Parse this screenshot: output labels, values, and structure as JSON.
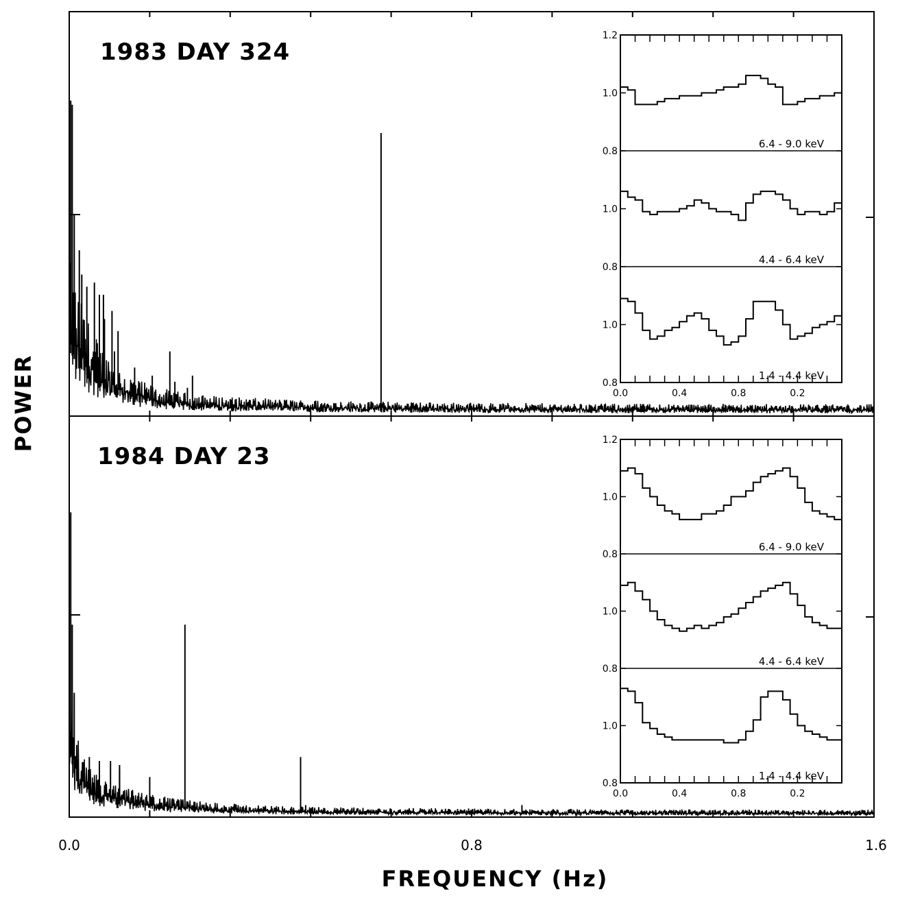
{
  "chart_data": {
    "type": "line",
    "xlabel": "FREQUENCY (Hz)",
    "ylabel": "POWER",
    "xlim": [
      0.0,
      1.6
    ],
    "x_tick_labels": [
      "0.0",
      "0.8",
      "1.6"
    ],
    "x_ticks": [
      0.0,
      0.16,
      0.32,
      0.48,
      0.64,
      0.8,
      0.96,
      1.12,
      1.28,
      1.44,
      1.6
    ],
    "panels": [
      {
        "label": "1983 DAY 324",
        "series": [
          {
            "type": "line",
            "peaks": [
              {
                "x": 0.003,
                "y": 0.78
              },
              {
                "x": 0.006,
                "y": 0.77
              },
              {
                "x": 0.01,
                "y": 0.5
              },
              {
                "x": 0.02,
                "y": 0.41
              },
              {
                "x": 0.025,
                "y": 0.35
              },
              {
                "x": 0.035,
                "y": 0.32
              },
              {
                "x": 0.05,
                "y": 0.33
              },
              {
                "x": 0.06,
                "y": 0.3
              },
              {
                "x": 0.068,
                "y": 0.3
              },
              {
                "x": 0.07,
                "y": 0.24
              },
              {
                "x": 0.085,
                "y": 0.26
              },
              {
                "x": 0.097,
                "y": 0.21
              },
              {
                "x": 0.2,
                "y": 0.16
              },
              {
                "x": 0.09,
                "y": 0.16
              },
              {
                "x": 0.13,
                "y": 0.12
              },
              {
                "x": 0.165,
                "y": 0.1
              },
              {
                "x": 0.21,
                "y": 0.085
              },
              {
                "x": 0.235,
                "y": 0.07
              },
              {
                "x": 0.245,
                "y": 0.1
              },
              {
                "x": 0.62,
                "y": 0.7
              },
              {
                "x": 0.8,
                "y": 0.025
              },
              {
                "x": 1.3,
                "y": 0.03
              }
            ]
          }
        ],
        "insets": [
          {
            "ylim": [
              0.8,
              1.2
            ],
            "y_tick_labels": [
              "1.2",
              "1.0",
              "0.8"
            ],
            "band": "6.4 - 9.0 keV",
            "values": [
              1.02,
              1.01,
              0.96,
              0.96,
              0.96,
              0.97,
              0.98,
              0.98,
              0.99,
              0.99,
              0.99,
              1.0,
              1.0,
              1.01,
              1.02,
              1.02,
              1.03,
              1.06,
              1.06,
              1.05,
              1.03,
              1.02,
              0.96,
              0.96,
              0.97,
              0.98,
              0.98,
              0.99,
              0.99,
              1.0
            ]
          },
          {
            "ylim": [
              0.8,
              1.2
            ],
            "y_tick_labels": [
              "1.0",
              "0.8"
            ],
            "band": "4.4 - 6.4 keV",
            "values": [
              1.06,
              1.04,
              1.03,
              0.99,
              0.98,
              0.99,
              0.99,
              0.99,
              1.0,
              1.01,
              1.03,
              1.02,
              1.0,
              0.99,
              0.99,
              0.98,
              0.96,
              1.02,
              1.05,
              1.06,
              1.06,
              1.05,
              1.03,
              1.0,
              0.98,
              0.99,
              0.99,
              0.98,
              0.99,
              1.02
            ]
          },
          {
            "ylim": [
              0.8,
              1.2
            ],
            "y_tick_labels": [
              "1.0",
              "0.8"
            ],
            "band": "1.4 - 4.4 keV",
            "values": [
              1.09,
              1.08,
              1.04,
              0.98,
              0.95,
              0.96,
              0.98,
              0.99,
              1.01,
              1.03,
              1.04,
              1.02,
              0.98,
              0.96,
              0.93,
              0.94,
              0.96,
              1.02,
              1.08,
              1.08,
              1.08,
              1.05,
              1.0,
              0.95,
              0.96,
              0.97,
              0.99,
              1.0,
              1.01,
              1.03
            ]
          }
        ],
        "inset_x_tick_labels": [
          "0.0",
          "0.4",
          "0.8",
          "0.2"
        ]
      },
      {
        "label": "1984 DAY 23",
        "series": [
          {
            "type": "line",
            "peaks": [
              {
                "x": 0.003,
                "y": 0.76
              },
              {
                "x": 0.006,
                "y": 0.48
              },
              {
                "x": 0.01,
                "y": 0.31
              },
              {
                "x": 0.015,
                "y": 0.18
              },
              {
                "x": 0.04,
                "y": 0.15
              },
              {
                "x": 0.06,
                "y": 0.14
              },
              {
                "x": 0.082,
                "y": 0.14
              },
              {
                "x": 0.1,
                "y": 0.13
              },
              {
                "x": 0.16,
                "y": 0.1
              },
              {
                "x": 0.1,
                "y": 0.12
              },
              {
                "x": 0.23,
                "y": 0.48
              },
              {
                "x": 0.46,
                "y": 0.15
              },
              {
                "x": 0.47,
                "y": 0.03
              },
              {
                "x": 0.9,
                "y": 0.03
              }
            ]
          }
        ],
        "insets": [
          {
            "ylim": [
              0.8,
              1.2
            ],
            "y_tick_labels": [
              "1.2",
              "1.0",
              "0.8"
            ],
            "band": "6.4 - 9.0 keV",
            "values": [
              1.09,
              1.1,
              1.08,
              1.03,
              1.0,
              0.97,
              0.95,
              0.94,
              0.92,
              0.92,
              0.92,
              0.94,
              0.94,
              0.95,
              0.97,
              1.0,
              1.0,
              1.02,
              1.05,
              1.07,
              1.08,
              1.09,
              1.1,
              1.07,
              1.03,
              0.98,
              0.95,
              0.94,
              0.93,
              0.92
            ]
          },
          {
            "ylim": [
              0.8,
              1.2
            ],
            "y_tick_labels": [
              "1.0",
              "0.8"
            ],
            "band": "4.4 - 6.4 keV",
            "values": [
              1.09,
              1.1,
              1.07,
              1.04,
              1.0,
              0.97,
              0.95,
              0.94,
              0.93,
              0.94,
              0.95,
              0.94,
              0.95,
              0.96,
              0.98,
              0.99,
              1.01,
              1.03,
              1.05,
              1.07,
              1.08,
              1.09,
              1.1,
              1.06,
              1.02,
              0.98,
              0.96,
              0.95,
              0.94,
              0.94
            ]
          },
          {
            "ylim": [
              0.8,
              1.2
            ],
            "y_tick_labels": [
              "1.0",
              "0.8"
            ],
            "band": "1.4 - 4.4 keV",
            "values": [
              1.13,
              1.12,
              1.08,
              1.01,
              0.99,
              0.97,
              0.96,
              0.95,
              0.95,
              0.95,
              0.95,
              0.95,
              0.95,
              0.95,
              0.94,
              0.94,
              0.95,
              0.98,
              1.02,
              1.1,
              1.12,
              1.12,
              1.09,
              1.04,
              1.0,
              0.98,
              0.97,
              0.96,
              0.95,
              0.95
            ]
          }
        ],
        "inset_x_tick_labels": [
          "0.0",
          "0.4",
          "0.8",
          "0.2"
        ]
      }
    ]
  }
}
